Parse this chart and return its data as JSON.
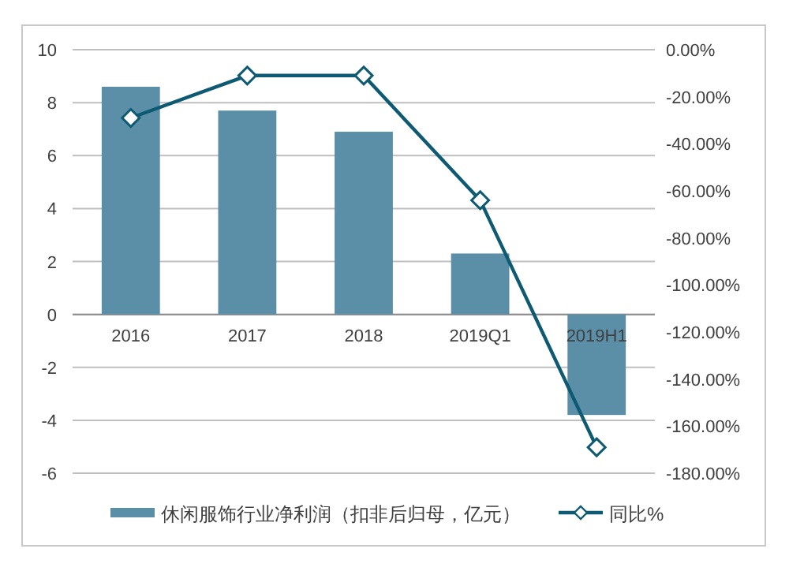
{
  "chart_data": {
    "type": "bar",
    "categories": [
      "2016",
      "2017",
      "2018",
      "2019Q1",
      "2019H1"
    ],
    "series": [
      {
        "name": "休闲服饰行业净利润（扣非后归母，亿元）",
        "color": "#5b8fa8",
        "values": [
          8.6,
          7.7,
          6.9,
          2.3,
          -3.8
        ]
      },
      {
        "name": "同比%",
        "type": "line",
        "axis": "y2",
        "color": "#0e5a73",
        "values": [
          -29,
          -11,
          -11,
          -64,
          -169
        ]
      }
    ],
    "marker": "diamond",
    "line_style": "solid",
    "ylim": [
      -6,
      10
    ],
    "yticks": [
      -6,
      -4,
      -2,
      0,
      2,
      4,
      6,
      8,
      10
    ],
    "y2lim": [
      -180,
      0
    ],
    "y2ticks": [
      {
        "value": -180,
        "label": "-180.00%"
      },
      {
        "value": -160,
        "label": "-160.00%"
      },
      {
        "value": -140,
        "label": "-140.00%"
      },
      {
        "value": -120,
        "label": "-120.00%"
      },
      {
        "value": -100,
        "label": "-100.00%"
      },
      {
        "value": -80,
        "label": "-80.00%"
      },
      {
        "value": -60,
        "label": "-60.00%"
      },
      {
        "value": -40,
        "label": "-40.00%"
      },
      {
        "value": -20,
        "label": "-20.00%"
      },
      {
        "value": 0,
        "label": "0.00%"
      }
    ],
    "grid": "y",
    "legend": "bottom"
  }
}
